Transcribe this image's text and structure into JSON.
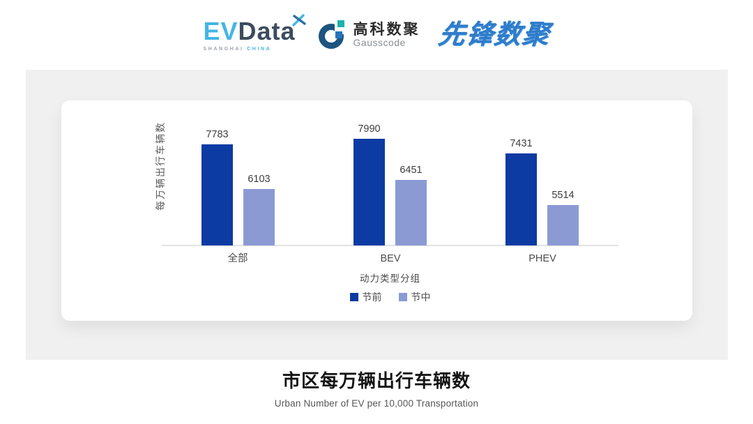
{
  "header": {
    "evdata": {
      "ev": "EV",
      "data": "Data",
      "tagline_left": "SHANGHAI",
      "tagline_right": "CHINA"
    },
    "gausscode": {
      "name_cn": "高科数聚",
      "name_en": "Gausscode"
    },
    "pioneer": {
      "name": "先锋数聚"
    }
  },
  "chart_data": {
    "type": "bar",
    "title": "市区每万辆出行车辆数",
    "subtitle": "Urban Number of EV per 10,000 Transportation",
    "categories": [
      "全部",
      "BEV",
      "PHEV"
    ],
    "series": [
      {
        "name": "节前",
        "color": "#0c3ba3",
        "values": [
          7783,
          7990,
          7431
        ]
      },
      {
        "name": "节中",
        "color": "#8c9ad4",
        "values": [
          6103,
          6451,
          5514
        ]
      }
    ],
    "xlabel": "动力类型分组",
    "ylabel": "每万辆出行车辆数",
    "ylim": [
      4000,
      8870
    ],
    "grid": false,
    "legend_position": "bottom",
    "data_labels": true
  }
}
